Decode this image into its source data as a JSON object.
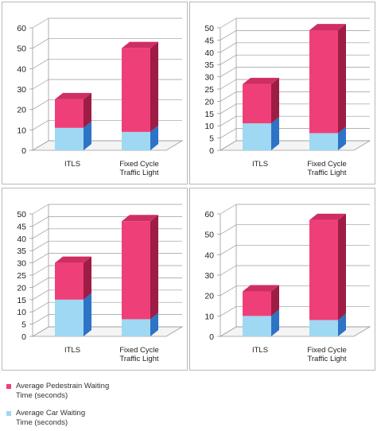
{
  "legend": {
    "pedestrian_label": "Average Pedestrain Waiting Time (seconds)",
    "car_label": "Average Car Waiting Time (seconds)"
  },
  "colors": {
    "pedestrian_front": "#ef3f79",
    "pedestrian_top": "#cf2e62",
    "pedestrian_side": "#9e1d45",
    "car_front": "#9fd8f2",
    "car_top": "#86c6e6",
    "car_side": "#2d73c6"
  },
  "chart_data": [
    {
      "type": "bar",
      "stacked": true,
      "categories": [
        "ITLS",
        "Fixed Cycle Traffic Light"
      ],
      "series": [
        {
          "name": "Average Car Waiting Time (seconds)",
          "values": [
            11,
            9
          ]
        },
        {
          "name": "Average Pedestrain Waiting Time (seconds)",
          "values": [
            14,
            41
          ]
        }
      ],
      "ylim": [
        0,
        60
      ],
      "yticks": [
        0,
        10,
        20,
        30,
        40,
        50,
        60
      ]
    },
    {
      "type": "bar",
      "stacked": true,
      "categories": [
        "ITLS",
        "Fixed Cycle Traffic Light"
      ],
      "series": [
        {
          "name": "Average Car Waiting Time (seconds)",
          "values": [
            11,
            7
          ]
        },
        {
          "name": "Average Pedestrain Waiting Time (seconds)",
          "values": [
            16,
            42
          ]
        }
      ],
      "ylim": [
        0,
        50
      ],
      "yticks": [
        0,
        5,
        10,
        15,
        20,
        25,
        30,
        35,
        40,
        45,
        50
      ]
    },
    {
      "type": "bar",
      "stacked": true,
      "categories": [
        "ITLS",
        "Fixed Cycle Traffic Light"
      ],
      "series": [
        {
          "name": "Average Car Waiting Time (seconds)",
          "values": [
            15,
            7
          ]
        },
        {
          "name": "Average Pedestrain Waiting Time (seconds)",
          "values": [
            15,
            40
          ]
        }
      ],
      "ylim": [
        0,
        50
      ],
      "yticks": [
        0,
        5,
        10,
        15,
        20,
        25,
        30,
        35,
        40,
        45,
        50
      ]
    },
    {
      "type": "bar",
      "stacked": true,
      "categories": [
        "ITLS",
        "Fixed Cycle Traffic Light"
      ],
      "series": [
        {
          "name": "Average Car Waiting Time (seconds)",
          "values": [
            10,
            8
          ]
        },
        {
          "name": "Average Pedestrain Waiting Time (seconds)",
          "values": [
            12,
            49
          ]
        }
      ],
      "ylim": [
        0,
        60
      ],
      "yticks": [
        0,
        10,
        20,
        30,
        40,
        50,
        60
      ]
    }
  ]
}
